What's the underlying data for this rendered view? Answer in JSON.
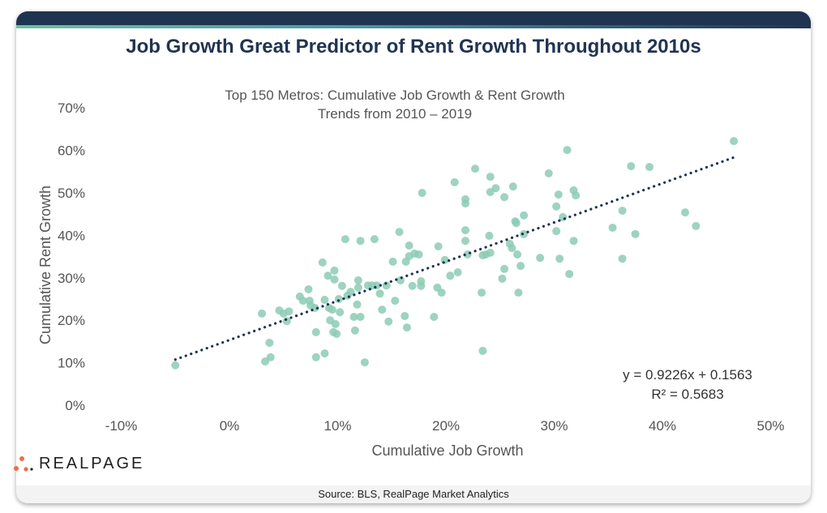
{
  "header": {
    "title": "Job Growth Great Predictor of Rent Growth Throughout 2010s"
  },
  "footer": {
    "source": "Source: BLS, RealPage Market Analytics",
    "logo_text": "REALPAGE"
  },
  "colors": {
    "header": "#1f3450",
    "points": "#8ccbb4",
    "trendline": "#1f3450",
    "logo_dots": "#e8704a"
  },
  "chart_data": {
    "type": "scatter",
    "title": "Top 150 Metros: Cumulative Job Growth & Rent Growth",
    "subtitle": "Trends from 2010 – 2019",
    "xlabel": "Cumulative Job Growth",
    "ylabel": "Cumulative Rent Growth",
    "xlim": [
      -10,
      50
    ],
    "ylim": [
      0,
      70
    ],
    "x_ticks": [
      "-10%",
      "0%",
      "10%",
      "20%",
      "30%",
      "40%",
      "50%"
    ],
    "y_ticks": [
      "0%",
      "10%",
      "20%",
      "30%",
      "40%",
      "50%",
      "60%",
      "70%"
    ],
    "grid": false,
    "trendline": {
      "type": "linear",
      "slope": 0.9226,
      "intercept": 0.1563,
      "equation": "y = 0.9226x + 0.1563",
      "r2": "R² = 0.5683",
      "x_range": [
        -5.3,
        46.3
      ]
    },
    "points": [
      [
        -5.3,
        9.4
      ],
      [
        2.7,
        21.6
      ],
      [
        3.0,
        10.3
      ],
      [
        3.4,
        14.7
      ],
      [
        3.5,
        11.3
      ],
      [
        4.3,
        22.3
      ],
      [
        4.7,
        21.6
      ],
      [
        5.0,
        19.8
      ],
      [
        5.2,
        22.1
      ],
      [
        6.2,
        25.6
      ],
      [
        6.5,
        24.6
      ],
      [
        7.0,
        27.3
      ],
      [
        7.1,
        24.6
      ],
      [
        7.2,
        23.5
      ],
      [
        7.6,
        22.9
      ],
      [
        7.7,
        17.2
      ],
      [
        7.7,
        11.3
      ],
      [
        8.3,
        33.6
      ],
      [
        8.5,
        24.8
      ],
      [
        8.5,
        12.2
      ],
      [
        8.8,
        30.5
      ],
      [
        8.9,
        22.9
      ],
      [
        9.0,
        20.0
      ],
      [
        9.2,
        22.5
      ],
      [
        9.3,
        17.2
      ],
      [
        9.4,
        31.7
      ],
      [
        9.4,
        29.6
      ],
      [
        9.5,
        19.1
      ],
      [
        9.6,
        16.8
      ],
      [
        9.8,
        25.0
      ],
      [
        9.9,
        21.9
      ],
      [
        10.1,
        28.1
      ],
      [
        10.4,
        39.1
      ],
      [
        10.6,
        25.8
      ],
      [
        10.9,
        26.7
      ],
      [
        11.2,
        20.8
      ],
      [
        11.3,
        17.6
      ],
      [
        11.5,
        23.7
      ],
      [
        11.6,
        27.7
      ],
      [
        11.6,
        29.4
      ],
      [
        11.8,
        38.7
      ],
      [
        11.8,
        20.8
      ],
      [
        12.2,
        10.1
      ],
      [
        12.5,
        28.2
      ],
      [
        12.9,
        28.2
      ],
      [
        13.1,
        39.1
      ],
      [
        13.3,
        28.2
      ],
      [
        13.6,
        26.3
      ],
      [
        13.8,
        22.5
      ],
      [
        14.2,
        28.2
      ],
      [
        14.4,
        19.7
      ],
      [
        14.8,
        33.8
      ],
      [
        15.0,
        24.6
      ],
      [
        15.4,
        40.8
      ],
      [
        15.5,
        29.4
      ],
      [
        15.9,
        21.0
      ],
      [
        16.0,
        33.8
      ],
      [
        16.1,
        18.3
      ],
      [
        16.3,
        37.6
      ],
      [
        16.3,
        35.1
      ],
      [
        16.6,
        28.1
      ],
      [
        16.8,
        35.7
      ],
      [
        17.2,
        35.5
      ],
      [
        17.4,
        29.2
      ],
      [
        17.4,
        28.1
      ],
      [
        17.5,
        50.0
      ],
      [
        18.6,
        20.8
      ],
      [
        18.9,
        27.7
      ],
      [
        19.0,
        37.4
      ],
      [
        19.3,
        26.5
      ],
      [
        19.6,
        34.2
      ],
      [
        20.1,
        30.5
      ],
      [
        20.5,
        52.5
      ],
      [
        20.8,
        31.3
      ],
      [
        21.5,
        48.5
      ],
      [
        21.5,
        47.5
      ],
      [
        21.5,
        41.2
      ],
      [
        21.5,
        38.7
      ],
      [
        21.7,
        35.5
      ],
      [
        22.4,
        55.7
      ],
      [
        23.0,
        26.5
      ],
      [
        23.1,
        35.3
      ],
      [
        23.1,
        12.8
      ],
      [
        23.4,
        35.5
      ],
      [
        23.8,
        53.8
      ],
      [
        23.8,
        50.2
      ],
      [
        23.8,
        35.9
      ],
      [
        23.7,
        39.9
      ],
      [
        24.3,
        51.1
      ],
      [
        24.9,
        29.8
      ],
      [
        25.1,
        49.0
      ],
      [
        25.1,
        32.1
      ],
      [
        25.6,
        38.0
      ],
      [
        25.8,
        37.0
      ],
      [
        25.9,
        51.5
      ],
      [
        26.1,
        43.3
      ],
      [
        26.2,
        42.9
      ],
      [
        26.3,
        35.5
      ],
      [
        26.4,
        26.5
      ],
      [
        26.6,
        32.8
      ],
      [
        26.9,
        40.3
      ],
      [
        26.9,
        44.7
      ],
      [
        28.4,
        34.7
      ],
      [
        29.2,
        54.6
      ],
      [
        29.9,
        46.8
      ],
      [
        29.9,
        41.0
      ],
      [
        30.1,
        49.6
      ],
      [
        30.2,
        34.5
      ],
      [
        30.5,
        44.3
      ],
      [
        30.9,
        60.1
      ],
      [
        31.1,
        30.9
      ],
      [
        31.5,
        50.6
      ],
      [
        31.7,
        49.4
      ],
      [
        31.5,
        38.7
      ],
      [
        35.1,
        41.8
      ],
      [
        36.0,
        45.8
      ],
      [
        36.0,
        34.5
      ],
      [
        36.8,
        56.3
      ],
      [
        37.2,
        40.3
      ],
      [
        38.5,
        56.1
      ],
      [
        41.8,
        45.4
      ],
      [
        42.8,
        42.2
      ],
      [
        46.3,
        62.2
      ]
    ]
  }
}
